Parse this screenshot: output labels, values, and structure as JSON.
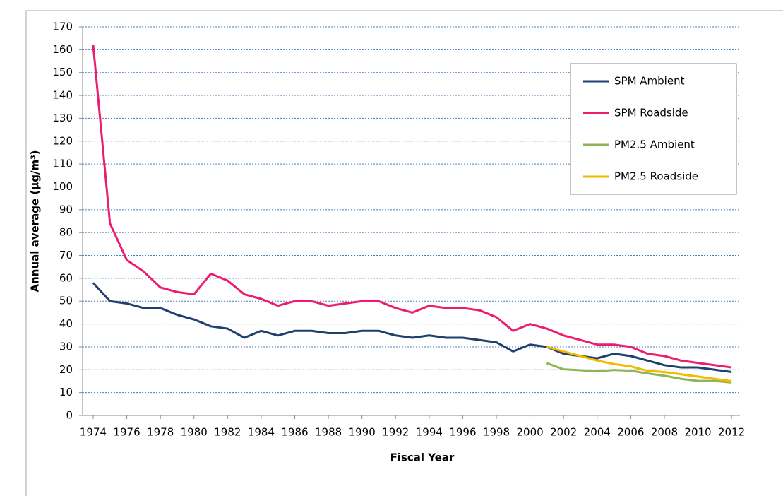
{
  "chart_data": {
    "type": "line",
    "y_label": "Annual average (μg/m³)",
    "x_label": "Fiscal Year",
    "x": [
      1974,
      1975,
      1976,
      1977,
      1978,
      1979,
      1980,
      1981,
      1982,
      1983,
      1984,
      1985,
      1986,
      1987,
      1988,
      1989,
      1990,
      1991,
      1992,
      1993,
      1994,
      1995,
      1996,
      1997,
      1998,
      1999,
      2000,
      2001,
      2002,
      2003,
      2004,
      2005,
      2006,
      2007,
      2008,
      2009,
      2010,
      2011,
      2012
    ],
    "series": [
      {
        "name": "SPM Ambient",
        "color": "#1f3f6e",
        "values": [
          58,
          50,
          49,
          47,
          47,
          44,
          42,
          39,
          38,
          34,
          37,
          35,
          37,
          37,
          36,
          36,
          37,
          37,
          35,
          34,
          35,
          34,
          34,
          33,
          32,
          28,
          31,
          30,
          27,
          26,
          25,
          27,
          26,
          24,
          22,
          21,
          21,
          20,
          19
        ]
      },
      {
        "name": "SPM Roadside",
        "color": "#ec1c6e",
        "values": [
          162,
          84,
          68,
          63,
          56,
          54,
          53,
          62,
          59,
          53,
          51,
          48,
          50,
          50,
          48,
          49,
          50,
          50,
          47,
          45,
          48,
          47,
          47,
          46,
          43,
          37,
          40,
          38,
          35,
          33,
          31,
          31,
          30,
          27,
          26,
          24,
          23,
          22,
          21
        ]
      },
      {
        "name": "PM2.5 Ambient",
        "color": "#8db552",
        "values": [
          null,
          null,
          null,
          null,
          null,
          null,
          null,
          null,
          null,
          null,
          null,
          null,
          null,
          null,
          null,
          null,
          null,
          null,
          null,
          null,
          null,
          null,
          null,
          null,
          null,
          null,
          null,
          22.9,
          20.2,
          19.8,
          19.3,
          19.9,
          19.6,
          18.4,
          17.4,
          16,
          15.1,
          15.1,
          14.4
        ]
      },
      {
        "name": "PM2.5 Roadside",
        "color": "#f5b800",
        "values": [
          null,
          null,
          null,
          null,
          null,
          null,
          null,
          null,
          null,
          null,
          null,
          null,
          null,
          null,
          null,
          null,
          null,
          null,
          null,
          null,
          null,
          null,
          null,
          null,
          null,
          null,
          null,
          30,
          28,
          26,
          24,
          22.5,
          21.5,
          19.5,
          19,
          18,
          17,
          16,
          15
        ]
      }
    ],
    "xlim": [
      1973.37,
      2012.5
    ],
    "xticks": [
      1974,
      1976,
      1978,
      1980,
      1982,
      1984,
      1986,
      1988,
      1990,
      1992,
      1994,
      1996,
      1998,
      2000,
      2002,
      2004,
      2006,
      2008,
      2010,
      2012
    ],
    "ylim": [
      0,
      170
    ],
    "yticks": [
      0,
      10,
      20,
      30,
      40,
      50,
      60,
      70,
      80,
      90,
      100,
      110,
      120,
      130,
      140,
      150,
      160,
      170
    ],
    "grid": true,
    "legend": "upper right"
  }
}
